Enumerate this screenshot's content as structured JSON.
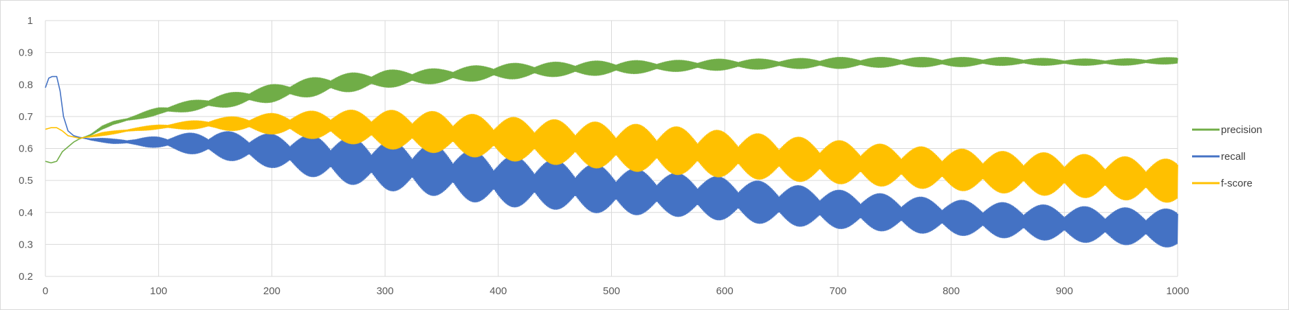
{
  "chart_data": {
    "type": "line",
    "title": "",
    "xlabel": "",
    "ylabel": "",
    "xlim": [
      0,
      1000
    ],
    "ylim": [
      0.2,
      1
    ],
    "x_ticks": [
      0,
      100,
      200,
      300,
      400,
      500,
      600,
      700,
      800,
      900,
      1000
    ],
    "x_tick_labels": [
      "0",
      "100",
      "200",
      "300",
      "400",
      "500",
      "600",
      "700",
      "800",
      "900",
      "1000"
    ],
    "y_ticks": [
      0.2,
      0.3,
      0.4,
      0.5,
      0.6,
      0.7,
      0.8,
      0.9,
      1
    ],
    "y_tick_labels": [
      "0.2",
      "0.3",
      "0.4",
      "0.5",
      "0.6",
      "0.7",
      "0.8",
      "0.9",
      "1"
    ],
    "grid": true,
    "legend_position": "right",
    "series": [
      {
        "name": "precision",
        "color": "#70ad47",
        "x": [
          0,
          5,
          10,
          15,
          20,
          25,
          30,
          40,
          50,
          60,
          80,
          100,
          150,
          200,
          250,
          300,
          350,
          400,
          450,
          500,
          550,
          600,
          650,
          700,
          750,
          800,
          850,
          900,
          950,
          1000
        ],
        "upper": [
          0.56,
          0.555,
          0.56,
          0.59,
          0.605,
          0.62,
          0.63,
          0.645,
          0.67,
          0.685,
          0.705,
          0.73,
          0.765,
          0.8,
          0.83,
          0.845,
          0.85,
          0.865,
          0.87,
          0.875,
          0.875,
          0.88,
          0.88,
          0.885,
          0.885,
          0.885,
          0.885,
          0.88,
          0.88,
          0.885
        ],
        "lower": [
          0.56,
          0.555,
          0.56,
          0.59,
          0.605,
          0.62,
          0.63,
          0.64,
          0.66,
          0.675,
          0.69,
          0.705,
          0.725,
          0.745,
          0.77,
          0.79,
          0.805,
          0.815,
          0.825,
          0.83,
          0.84,
          0.845,
          0.85,
          0.85,
          0.855,
          0.855,
          0.86,
          0.86,
          0.86,
          0.865
        ],
        "wave_period": 36
      },
      {
        "name": "recall",
        "color": "#4472c4",
        "x": [
          0,
          3,
          6,
          10,
          13,
          16,
          20,
          25,
          30,
          40,
          50,
          60,
          80,
          100,
          150,
          200,
          250,
          300,
          350,
          400,
          450,
          500,
          550,
          600,
          650,
          700,
          750,
          800,
          850,
          900,
          950,
          1000
        ],
        "upper": [
          0.79,
          0.82,
          0.825,
          0.825,
          0.78,
          0.7,
          0.655,
          0.64,
          0.635,
          0.632,
          0.632,
          0.63,
          0.63,
          0.64,
          0.655,
          0.645,
          0.64,
          0.625,
          0.61,
          0.58,
          0.565,
          0.545,
          0.525,
          0.51,
          0.49,
          0.47,
          0.455,
          0.44,
          0.43,
          0.42,
          0.415,
          0.41
        ],
        "lower": [
          0.79,
          0.82,
          0.825,
          0.825,
          0.78,
          0.7,
          0.655,
          0.64,
          0.635,
          0.625,
          0.62,
          0.615,
          0.61,
          0.6,
          0.57,
          0.54,
          0.5,
          0.47,
          0.45,
          0.42,
          0.41,
          0.395,
          0.39,
          0.375,
          0.36,
          0.35,
          0.34,
          0.33,
          0.32,
          0.31,
          0.3,
          0.29
        ],
        "wave_period": 36
      },
      {
        "name": "f-score",
        "color": "#ffc000",
        "x": [
          0,
          5,
          10,
          15,
          20,
          30,
          40,
          50,
          60,
          80,
          100,
          150,
          200,
          250,
          300,
          350,
          400,
          450,
          500,
          550,
          600,
          650,
          700,
          750,
          800,
          850,
          900,
          950,
          1000
        ],
        "upper": [
          0.66,
          0.665,
          0.665,
          0.655,
          0.64,
          0.632,
          0.64,
          0.65,
          0.655,
          0.665,
          0.675,
          0.695,
          0.71,
          0.72,
          0.72,
          0.715,
          0.7,
          0.69,
          0.68,
          0.67,
          0.655,
          0.64,
          0.625,
          0.61,
          0.6,
          0.59,
          0.585,
          0.575,
          0.565
        ],
        "lower": [
          0.66,
          0.665,
          0.665,
          0.655,
          0.64,
          0.632,
          0.635,
          0.64,
          0.645,
          0.655,
          0.66,
          0.66,
          0.645,
          0.625,
          0.6,
          0.585,
          0.565,
          0.55,
          0.535,
          0.52,
          0.51,
          0.5,
          0.49,
          0.48,
          0.47,
          0.46,
          0.45,
          0.44,
          0.43
        ],
        "wave_period": 36
      }
    ]
  }
}
